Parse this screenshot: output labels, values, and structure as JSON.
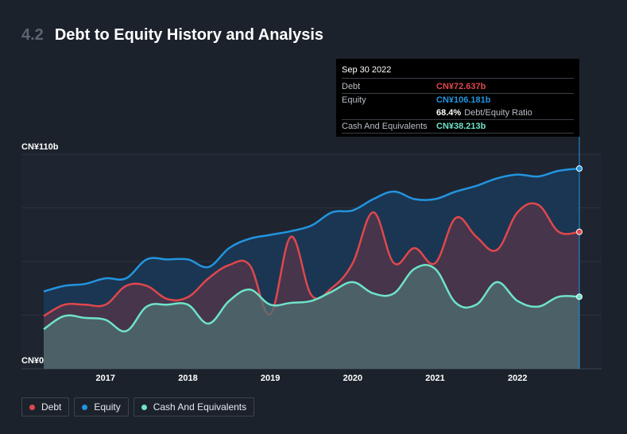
{
  "header": {
    "section_number": "4.2",
    "title": "Debt to Equity History and Analysis"
  },
  "tooltip": {
    "date": "Sep 30 2022",
    "debt_label": "Debt",
    "debt_value": "CN¥72.637b",
    "equity_label": "Equity",
    "equity_value": "CN¥106.181b",
    "ratio_value": "68.4%",
    "ratio_label": "Debt/Equity Ratio",
    "cash_label": "Cash And Equivalents",
    "cash_value": "CN¥38.213b"
  },
  "legend": [
    {
      "label": "Debt",
      "color": "#e0474c"
    },
    {
      "label": "Equity",
      "color": "#2394df"
    },
    {
      "label": "Cash And Equivalents",
      "color": "#6fe3c8"
    }
  ],
  "chart_data": {
    "type": "area",
    "y_tick_labels": [
      "CN¥110b",
      "CN¥0"
    ],
    "ylim": [
      0,
      110
    ],
    "xlim": [
      2016.25,
      2022.75
    ],
    "x_ticks": [
      2017,
      2018,
      2019,
      2020,
      2021,
      2022
    ],
    "x_tick_labels": [
      "2017",
      "2018",
      "2019",
      "2020",
      "2021",
      "2022"
    ],
    "colors": {
      "debt": "#e0474c",
      "equity": "#2394df",
      "cash": "#6fe3c8"
    },
    "series": [
      {
        "name": "Equity",
        "x": [
          2016.25,
          2016.5,
          2016.75,
          2017.0,
          2017.25,
          2017.5,
          2017.75,
          2018.0,
          2018.25,
          2018.5,
          2018.75,
          2019.0,
          2019.25,
          2019.5,
          2019.75,
          2020.0,
          2020.25,
          2020.5,
          2020.75,
          2021.0,
          2021.25,
          2021.5,
          2021.75,
          2022.0,
          2022.25,
          2022.5,
          2022.75
        ],
        "values": [
          41,
          44,
          45,
          48,
          48,
          58,
          58,
          58,
          54,
          64,
          69,
          71,
          73,
          76,
          83,
          84,
          90,
          94,
          90,
          90,
          94,
          97,
          101,
          103,
          102,
          105,
          106.181
        ]
      },
      {
        "name": "Debt",
        "x": [
          2016.25,
          2016.5,
          2016.75,
          2017.0,
          2017.25,
          2017.5,
          2017.75,
          2018.0,
          2018.25,
          2018.5,
          2018.75,
          2019.0,
          2019.25,
          2019.5,
          2019.75,
          2020.0,
          2020.25,
          2020.5,
          2020.75,
          2021.0,
          2021.25,
          2021.5,
          2021.75,
          2022.0,
          2022.25,
          2022.5,
          2022.75
        ],
        "values": [
          28,
          34,
          34,
          34,
          44,
          44,
          37,
          38,
          48,
          55,
          55,
          29,
          70,
          39,
          43,
          56,
          83,
          56,
          64,
          56,
          80,
          70,
          63,
          83,
          87,
          72.637,
          72.637
        ]
      },
      {
        "name": "Cash And Equivalents",
        "x": [
          2016.25,
          2016.5,
          2016.75,
          2017.0,
          2017.25,
          2017.5,
          2017.75,
          2018.0,
          2018.25,
          2018.5,
          2018.75,
          2019.0,
          2019.25,
          2019.5,
          2019.75,
          2020.0,
          2020.25,
          2020.5,
          2020.75,
          2021.0,
          2021.25,
          2021.5,
          2021.75,
          2022.0,
          2022.25,
          2022.5,
          2022.75
        ],
        "values": [
          21,
          28,
          27,
          26,
          20,
          33,
          34,
          34,
          24,
          36,
          42,
          34,
          35,
          36,
          41,
          46,
          40,
          40,
          53,
          53,
          35,
          34,
          46,
          36,
          33,
          38.213,
          38.213
        ]
      }
    ]
  }
}
